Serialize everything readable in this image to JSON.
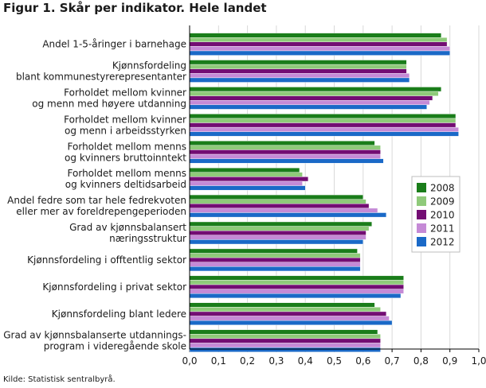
{
  "chart_data": {
    "type": "bar",
    "orientation": "horizontal",
    "title": "Figur 1. Skår per indikator. Hele landet",
    "source": "Kilde: Statistisk sentralbyrå.",
    "categories": [
      [
        "Andel 1-5-åringer i barnehage"
      ],
      [
        "Kjønnsfordeling",
        "blant kommunestyrerepresentanter"
      ],
      [
        "Forholdet mellom kvinner",
        "og menn med høyere utdanning"
      ],
      [
        "Forholdet mellom kvinner",
        "og menn i arbeidsstyrken"
      ],
      [
        "Forholdet mellom menns",
        "og kvinners bruttoinntekt"
      ],
      [
        "Forholdet mellom menns",
        "og kvinners deltidsarbeid"
      ],
      [
        "Andel fedre som tar hele fedrekvoten",
        "eller mer av foreldrepengeperioden"
      ],
      [
        "Grad av kjønnsbalansert",
        "næringsstruktur"
      ],
      [
        "Kjønnsfordeling i offtentlig sektor"
      ],
      [
        "Kjønnsfordeling i privat sektor"
      ],
      [
        "Kjønnsfordeling blant ledere"
      ],
      [
        "Grad av kjønnsbalanserte utdannings-",
        "program i videregående skole"
      ]
    ],
    "series": [
      {
        "name": "2008",
        "color": "#1a7d1a",
        "values": [
          0.87,
          0.75,
          0.87,
          0.92,
          0.64,
          0.38,
          0.6,
          0.63,
          0.58,
          0.74,
          0.64,
          0.65
        ]
      },
      {
        "name": "2009",
        "color": "#8fca7a",
        "values": [
          0.89,
          0.75,
          0.86,
          0.92,
          0.66,
          0.39,
          0.61,
          0.62,
          0.59,
          0.74,
          0.66,
          0.66
        ]
      },
      {
        "name": "2010",
        "color": "#730d73",
        "values": [
          0.89,
          0.75,
          0.84,
          0.92,
          0.66,
          0.41,
          0.62,
          0.61,
          0.59,
          0.74,
          0.68,
          0.66
        ]
      },
      {
        "name": "2011",
        "color": "#c58ad6",
        "values": [
          0.9,
          0.76,
          0.83,
          0.93,
          0.66,
          0.39,
          0.65,
          0.61,
          0.59,
          0.74,
          0.69,
          0.66
        ]
      },
      {
        "name": "2012",
        "color": "#1a69c7",
        "values": [
          0.9,
          0.76,
          0.82,
          0.93,
          0.67,
          0.4,
          0.68,
          0.6,
          0.59,
          0.73,
          0.7,
          0.66
        ]
      }
    ],
    "xlim": [
      0,
      1.0
    ],
    "xticks": [
      "0,0",
      "0,1",
      "0,2",
      "0,3",
      "0,4",
      "0,5",
      "0,6",
      "0,7",
      "0,8",
      "0,9",
      "1,0"
    ],
    "grid": true,
    "legend_position": "right"
  }
}
